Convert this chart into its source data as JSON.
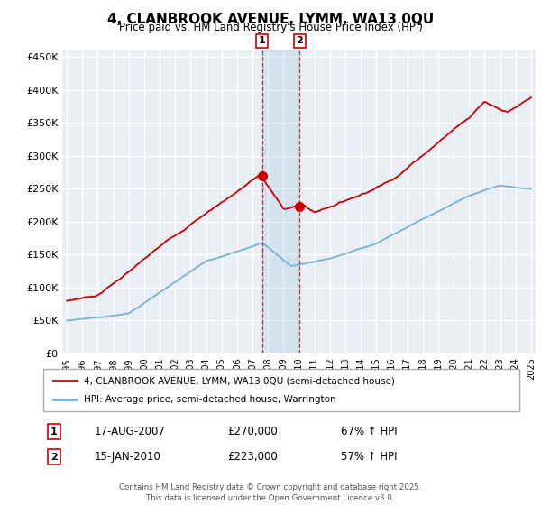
{
  "title": "4, CLANBROOK AVENUE, LYMM, WA13 0QU",
  "subtitle": "Price paid vs. HM Land Registry's House Price Index (HPI)",
  "legend_line1": "4, CLANBROOK AVENUE, LYMM, WA13 0QU (semi-detached house)",
  "legend_line2": "HPI: Average price, semi-detached house, Warrington",
  "footnote": "Contains HM Land Registry data © Crown copyright and database right 2025.\nThis data is licensed under the Open Government Licence v3.0.",
  "red_color": "#cc0000",
  "blue_color": "#7ab0d4",
  "marker1_date": 2007.63,
  "marker1_value": 270000,
  "marker2_date": 2010.04,
  "marker2_value": 223000,
  "ylim_max": 460000,
  "ylim_min": 0,
  "xlim_min": 1994.7,
  "xlim_max": 2025.3,
  "bg_color": "#e8eef4"
}
